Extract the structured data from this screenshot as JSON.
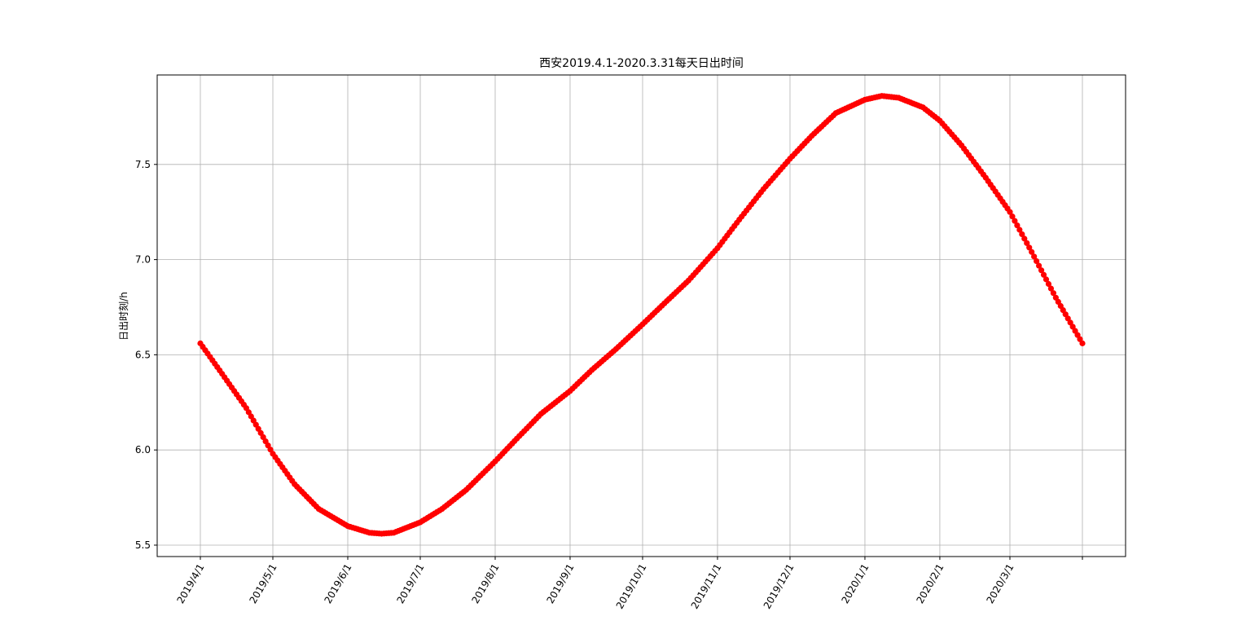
{
  "chart_data": {
    "type": "scatter",
    "title": "西安2019.4.1-2020.3.31每天日出时间",
    "xlabel": "",
    "ylabel": "日出时刻/h",
    "x_start": "2019-04-01",
    "x_end": "2020-03-31",
    "x_ticks": [
      {
        "date": "2019-04-01",
        "label": "2019/4/1"
      },
      {
        "date": "2019-05-01",
        "label": "2019/5/1"
      },
      {
        "date": "2019-06-01",
        "label": "2019/6/1"
      },
      {
        "date": "2019-07-01",
        "label": "2019/7/1"
      },
      {
        "date": "2019-08-01",
        "label": "2019/8/1"
      },
      {
        "date": "2019-09-01",
        "label": "2019/9/1"
      },
      {
        "date": "2019-10-01",
        "label": "2019/10/1"
      },
      {
        "date": "2019-11-01",
        "label": "2019/11/1"
      },
      {
        "date": "2019-12-01",
        "label": "2019/12/1"
      },
      {
        "date": "2020-01-01",
        "label": "2020/1/1"
      },
      {
        "date": "2020-02-01",
        "label": "2020/2/1"
      },
      {
        "date": "2020-03-01",
        "label": "2020/3/1"
      },
      {
        "date": "2020-03-31",
        "label": ""
      }
    ],
    "y_ticks": [
      5.5,
      6.0,
      6.5,
      7.0,
      7.5
    ],
    "ylim": [
      5.44,
      7.97
    ],
    "grid": true,
    "marker_color": "#ff0000",
    "series": [
      {
        "points": [
          [
            "2019-04-01",
            6.56
          ],
          [
            "2019-04-10",
            6.4
          ],
          [
            "2019-04-20",
            6.22
          ],
          [
            "2019-05-01",
            5.98
          ],
          [
            "2019-05-10",
            5.82
          ],
          [
            "2019-05-20",
            5.69
          ],
          [
            "2019-06-01",
            5.6
          ],
          [
            "2019-06-10",
            5.565
          ],
          [
            "2019-06-15",
            5.56
          ],
          [
            "2019-06-20",
            5.565
          ],
          [
            "2019-07-01",
            5.62
          ],
          [
            "2019-07-10",
            5.69
          ],
          [
            "2019-07-20",
            5.79
          ],
          [
            "2019-08-01",
            5.94
          ],
          [
            "2019-08-10",
            6.06
          ],
          [
            "2019-08-20",
            6.19
          ],
          [
            "2019-09-01",
            6.31
          ],
          [
            "2019-09-10",
            6.42
          ],
          [
            "2019-09-20",
            6.53
          ],
          [
            "2019-10-01",
            6.66
          ],
          [
            "2019-10-10",
            6.77
          ],
          [
            "2019-10-20",
            6.89
          ],
          [
            "2019-11-01",
            7.06
          ],
          [
            "2019-11-10",
            7.21
          ],
          [
            "2019-11-20",
            7.37
          ],
          [
            "2019-12-01",
            7.53
          ],
          [
            "2019-12-10",
            7.65
          ],
          [
            "2019-12-20",
            7.77
          ],
          [
            "2020-01-01",
            7.84
          ],
          [
            "2020-01-08",
            7.86
          ],
          [
            "2020-01-15",
            7.85
          ],
          [
            "2020-01-25",
            7.8
          ],
          [
            "2020-02-01",
            7.73
          ],
          [
            "2020-02-10",
            7.6
          ],
          [
            "2020-02-20",
            7.43
          ],
          [
            "2020-03-01",
            7.25
          ],
          [
            "2020-03-10",
            7.04
          ],
          [
            "2020-03-20",
            6.8
          ],
          [
            "2020-03-31",
            6.56
          ]
        ]
      }
    ]
  }
}
